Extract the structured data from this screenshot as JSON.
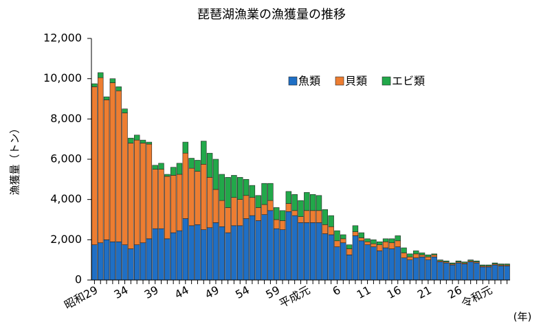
{
  "chart_data": {
    "type": "stacked_bar",
    "title": "琵琶湖漁業の漁獲量の推移",
    "y_label": "漁獲量（トン）",
    "x_label": "(年)",
    "categories": [
      "昭和29",
      null,
      null,
      null,
      null,
      "34",
      null,
      null,
      null,
      null,
      "39",
      null,
      null,
      null,
      null,
      "44",
      null,
      null,
      null,
      null,
      "49",
      null,
      null,
      null,
      null,
      "54",
      null,
      null,
      null,
      null,
      "59",
      null,
      null,
      null,
      null,
      "平成元",
      null,
      null,
      null,
      null,
      "6",
      null,
      null,
      null,
      null,
      "11",
      null,
      null,
      null,
      null,
      "16",
      null,
      null,
      null,
      null,
      "21",
      null,
      null,
      null,
      null,
      "26",
      null,
      null,
      null,
      null,
      "令和元",
      null,
      null,
      null
    ],
    "series": [
      {
        "name": "魚類",
        "color": "#1f6fc5",
        "values": [
          1750,
          1850,
          2000,
          1900,
          1900,
          1750,
          1550,
          1750,
          1850,
          2050,
          2550,
          2550,
          2050,
          2350,
          2450,
          3050,
          2700,
          2750,
          2500,
          2600,
          2850,
          2650,
          2350,
          2700,
          2700,
          3050,
          3200,
          2950,
          3250,
          3450,
          2550,
          2500,
          3400,
          3200,
          2850,
          2850,
          2850,
          2850,
          2300,
          2250,
          1650,
          1850,
          1250,
          2200,
          1950,
          1750,
          1650,
          1450,
          1600,
          1550,
          1650,
          1100,
          1000,
          1100,
          1150,
          1000,
          1150,
          900,
          850,
          750,
          850,
          800,
          900,
          850,
          650,
          650,
          750,
          700,
          700
        ]
      },
      {
        "name": "貝類",
        "color": "#ed7d31",
        "values": [
          7850,
          8200,
          6950,
          7900,
          7500,
          6550,
          5250,
          5200,
          4950,
          4700,
          2950,
          2950,
          3100,
          2850,
          2800,
          3250,
          2850,
          2650,
          3250,
          2500,
          1650,
          1300,
          1250,
          1400,
          1300,
          1150,
          900,
          650,
          500,
          500,
          450,
          450,
          400,
          250,
          300,
          600,
          600,
          600,
          450,
          400,
          300,
          200,
          300,
          200,
          150,
          150,
          150,
          300,
          300,
          300,
          300,
          250,
          150,
          200,
          100,
          150,
          100,
          50,
          50,
          50,
          50,
          50,
          50,
          50,
          50,
          50,
          50,
          50,
          50
        ]
      },
      {
        "name": "エビ類",
        "color": "#22a84a",
        "values": [
          150,
          250,
          150,
          200,
          200,
          200,
          250,
          250,
          150,
          100,
          200,
          300,
          100,
          400,
          550,
          550,
          500,
          550,
          1150,
          1200,
          1500,
          1300,
          1500,
          1100,
          1100,
          800,
          600,
          600,
          1050,
          850,
          600,
          500,
          600,
          800,
          800,
          900,
          800,
          750,
          750,
          550,
          500,
          200,
          200,
          300,
          250,
          150,
          200,
          150,
          150,
          200,
          250,
          250,
          150,
          150,
          100,
          100,
          50,
          50,
          50,
          50,
          50,
          50,
          50,
          50,
          50,
          50,
          50,
          50,
          50
        ]
      }
    ],
    "ylim": [
      0,
      12000
    ],
    "yticks": [
      0,
      {
        "value": 2000,
        "label": "2,000"
      },
      {
        "value": 4000,
        "label": "4,000"
      },
      {
        "value": 6000,
        "label": "6,000"
      },
      {
        "value": 8000,
        "label": "8,000"
      },
      {
        "value": 10000,
        "label": "10,000"
      },
      {
        "value": 12000,
        "label": "12,000"
      }
    ],
    "grid": false,
    "legend": "top-right"
  }
}
